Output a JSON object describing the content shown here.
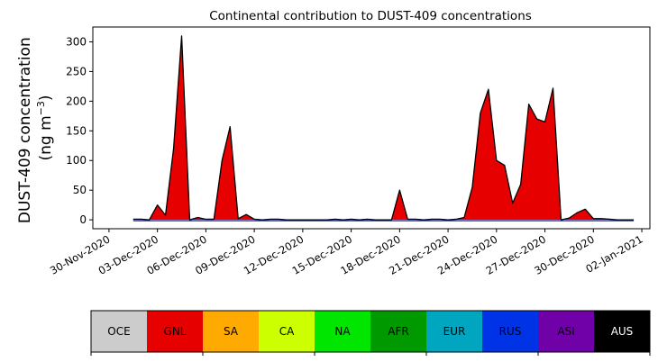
{
  "chart_data": {
    "type": "area",
    "title": "Continental contribution to DUST-409 concentrations",
    "ylabel_line1": "DUST-409 concentration",
    "ylabel_line2": "(ng m",
    "ylabel_sup": "−3",
    "ylabel_close": ")",
    "ylim": [
      -15,
      325
    ],
    "yticks": [
      0,
      50,
      100,
      150,
      200,
      250,
      300
    ],
    "xlim": [
      "2020-11-29",
      "2021-01-02T12:00"
    ],
    "xticks": [
      "2020-11-30",
      "2020-12-03",
      "2020-12-06",
      "2020-12-09",
      "2020-12-12",
      "2020-12-15",
      "2020-12-18",
      "2020-12-21",
      "2020-12-24",
      "2020-12-27",
      "2020-12-30",
      "2021-01-02"
    ],
    "xtick_labels": [
      "30-Nov-2020",
      "03-Dec-2020",
      "06-Dec-2020",
      "09-Dec-2020",
      "12-Dec-2020",
      "15-Dec-2020",
      "18-Dec-2020",
      "21-Dec-2020",
      "24-Dec-2020",
      "27-Dec-2020",
      "30-Dec-2020",
      "02-Jan-2021"
    ],
    "grid": false,
    "series_colors": {
      "total_line": "#000000",
      "GNL": "#e60000",
      "RUS": "#0033cc"
    },
    "x": [
      "2020-12-01T12:00",
      "2020-12-02T00:00",
      "2020-12-02T12:00",
      "2020-12-03T00:00",
      "2020-12-03T12:00",
      "2020-12-04T00:00",
      "2020-12-04T12:00",
      "2020-12-05T00:00",
      "2020-12-05T12:00",
      "2020-12-06T00:00",
      "2020-12-06T12:00",
      "2020-12-07T00:00",
      "2020-12-07T12:00",
      "2020-12-08T00:00",
      "2020-12-08T12:00",
      "2020-12-09T00:00",
      "2020-12-09T12:00",
      "2020-12-10T00:00",
      "2020-12-10T12:00",
      "2020-12-11T00:00",
      "2020-12-11T12:00",
      "2020-12-12T00:00",
      "2020-12-12T12:00",
      "2020-12-13T00:00",
      "2020-12-13T12:00",
      "2020-12-14T00:00",
      "2020-12-14T12:00",
      "2020-12-15T00:00",
      "2020-12-15T12:00",
      "2020-12-16T00:00",
      "2020-12-16T12:00",
      "2020-12-17T00:00",
      "2020-12-17T12:00",
      "2020-12-18T00:00",
      "2020-12-18T12:00",
      "2020-12-19T00:00",
      "2020-12-19T12:00",
      "2020-12-20T00:00",
      "2020-12-20T12:00",
      "2020-12-21T00:00",
      "2020-12-21T12:00",
      "2020-12-22T00:00",
      "2020-12-22T12:00",
      "2020-12-23T00:00",
      "2020-12-23T12:00",
      "2020-12-24T00:00",
      "2020-12-24T12:00",
      "2020-12-25T00:00",
      "2020-12-25T12:00",
      "2020-12-26T00:00",
      "2020-12-26T12:00",
      "2020-12-27T00:00",
      "2020-12-27T12:00",
      "2020-12-28T00:00",
      "2020-12-28T12:00",
      "2020-12-29T00:00",
      "2020-12-29T12:00",
      "2020-12-30T00:00",
      "2020-12-30T12:00",
      "2020-12-31T00:00",
      "2020-12-31T12:00",
      "2021-01-01T00:00",
      "2021-01-01T12:00"
    ],
    "total": [
      1,
      1,
      0,
      25,
      8,
      120,
      310,
      0,
      4,
      1,
      1,
      100,
      157,
      2,
      9,
      1,
      0,
      1,
      1,
      0,
      0,
      0,
      0,
      0,
      0,
      1,
      0,
      1,
      0,
      1,
      0,
      0,
      0,
      50,
      1,
      1,
      0,
      1,
      1,
      0,
      1,
      4,
      55,
      180,
      220,
      100,
      92,
      28,
      60,
      195,
      170,
      165,
      222,
      0,
      3,
      12,
      18,
      2,
      2,
      1,
      0,
      0,
      0
    ],
    "colorbar": {
      "labels": [
        "OCE",
        "GNL",
        "SA",
        "CA",
        "NA",
        "AFR",
        "EUR",
        "RUS",
        "ASI",
        "AUS"
      ],
      "colors": [
        "#cccccc",
        "#e60000",
        "#ffaa00",
        "#ccff00",
        "#00e600",
        "#009900",
        "#00a6bf",
        "#0033e6",
        "#7000a8",
        "#000000"
      ],
      "text_colors": [
        "#000000",
        "#000000",
        "#000000",
        "#000000",
        "#000000",
        "#000000",
        "#000000",
        "#000000",
        "#000000",
        "#ffffff"
      ]
    }
  }
}
